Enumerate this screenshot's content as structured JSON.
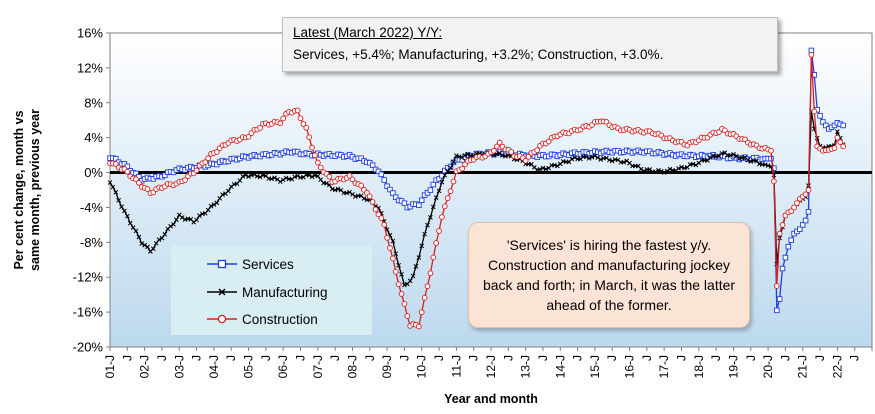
{
  "chart_data": {
    "type": "line",
    "title": "",
    "xlabel": "Year and month",
    "ylabel": "Per cent change, month vs\nsame month, previous year",
    "ylim": [
      -20,
      16
    ],
    "y_ticks": [
      "16%",
      "12%",
      "8%",
      "4%",
      "0%",
      "-4%",
      "-8%",
      "-12%",
      "-16%",
      "-20%"
    ],
    "x_tick_labels": [
      "01-J",
      "J",
      "02-J",
      "J",
      "03-J",
      "J",
      "04-J",
      "J",
      "05-J",
      "J",
      "06-J",
      "J",
      "07-J",
      "J",
      "08-J",
      "J",
      "09-J",
      "J",
      "10-J",
      "J",
      "11-J",
      "J",
      "12-J",
      "J",
      "13-J",
      "J",
      "14-J",
      "J",
      "15-J",
      "J",
      "16-J",
      "J",
      "17-J",
      "J",
      "18-J",
      "J",
      "19-J",
      "J",
      "20-J",
      "J",
      "21-J",
      "J",
      "22-J",
      "J"
    ],
    "x_start": "2001-01",
    "x_end": "2022-03",
    "legend_position": "bottom-left",
    "grid": false,
    "series": [
      {
        "name": "Services",
        "color": "#1f3fdc",
        "marker": "square",
        "points": [
          [
            "2001-01",
            1.8
          ],
          [
            "2001-06",
            0.9
          ],
          [
            "2001-12",
            -0.8
          ],
          [
            "2002-06",
            -0.5
          ],
          [
            "2002-12",
            0.3
          ],
          [
            "2003-06",
            0.6
          ],
          [
            "2003-12",
            0.9
          ],
          [
            "2004-06",
            1.4
          ],
          [
            "2004-12",
            1.8
          ],
          [
            "2005-06",
            2.0
          ],
          [
            "2005-12",
            2.2
          ],
          [
            "2006-04",
            2.4
          ],
          [
            "2006-09",
            2.1
          ],
          [
            "2007-06",
            2.0
          ],
          [
            "2007-12",
            1.9
          ],
          [
            "2008-06",
            1.3
          ],
          [
            "2008-10",
            0.2
          ],
          [
            "2009-03",
            -2.5
          ],
          [
            "2009-08",
            -3.9
          ],
          [
            "2009-12",
            -3.6
          ],
          [
            "2010-06",
            -1.0
          ],
          [
            "2010-12",
            1.2
          ],
          [
            "2011-06",
            2.0
          ],
          [
            "2011-12",
            2.2
          ],
          [
            "2012-06",
            2.2
          ],
          [
            "2012-12",
            2.0
          ],
          [
            "2013-06",
            1.9
          ],
          [
            "2013-12",
            2.0
          ],
          [
            "2014-06",
            2.2
          ],
          [
            "2014-12",
            2.3
          ],
          [
            "2015-06",
            2.4
          ],
          [
            "2015-12",
            2.4
          ],
          [
            "2016-06",
            2.4
          ],
          [
            "2016-12",
            2.2
          ],
          [
            "2017-06",
            2.0
          ],
          [
            "2017-12",
            1.9
          ],
          [
            "2018-06",
            1.9
          ],
          [
            "2018-12",
            1.7
          ],
          [
            "2019-06",
            1.6
          ],
          [
            "2019-12",
            1.6
          ],
          [
            "2020-02",
            1.6
          ],
          [
            "2020-03",
            0.5
          ],
          [
            "2020-04",
            -15.8
          ],
          [
            "2020-05",
            -14.5
          ],
          [
            "2020-06",
            -11.0
          ],
          [
            "2020-08",
            -8.5
          ],
          [
            "2020-10",
            -7.0
          ],
          [
            "2020-12",
            -6.5
          ],
          [
            "2021-02",
            -5.5
          ],
          [
            "2021-03",
            -4.5
          ],
          [
            "2021-04",
            14.0
          ],
          [
            "2021-05",
            11.2
          ],
          [
            "2021-06",
            7.2
          ],
          [
            "2021-08",
            5.8
          ],
          [
            "2021-10",
            5.0
          ],
          [
            "2021-12",
            5.4
          ],
          [
            "2022-01",
            5.7
          ],
          [
            "2022-03",
            5.4
          ]
        ]
      },
      {
        "name": "Manufacturing",
        "color": "#000000",
        "marker": "x",
        "points": [
          [
            "2001-01",
            -1.0
          ],
          [
            "2001-06",
            -4.5
          ],
          [
            "2001-12",
            -8.0
          ],
          [
            "2002-03",
            -9.0
          ],
          [
            "2002-08",
            -7.0
          ],
          [
            "2003-01",
            -5.0
          ],
          [
            "2003-06",
            -5.6
          ],
          [
            "2003-12",
            -4.0
          ],
          [
            "2004-06",
            -2.0
          ],
          [
            "2004-12",
            -0.3
          ],
          [
            "2005-06",
            -0.4
          ],
          [
            "2005-12",
            -0.9
          ],
          [
            "2006-06",
            -0.5
          ],
          [
            "2006-12",
            -0.3
          ],
          [
            "2007-06",
            -1.8
          ],
          [
            "2007-12",
            -2.4
          ],
          [
            "2008-06",
            -3.0
          ],
          [
            "2008-10",
            -4.0
          ],
          [
            "2009-03",
            -8.0
          ],
          [
            "2009-07",
            -13.0
          ],
          [
            "2009-10",
            -12.0
          ],
          [
            "2010-03",
            -6.0
          ],
          [
            "2010-08",
            -1.0
          ],
          [
            "2011-01",
            1.8
          ],
          [
            "2011-06",
            2.0
          ],
          [
            "2011-12",
            2.2
          ],
          [
            "2012-06",
            2.0
          ],
          [
            "2012-12",
            1.3
          ],
          [
            "2013-06",
            0.3
          ],
          [
            "2013-12",
            0.9
          ],
          [
            "2014-06",
            1.6
          ],
          [
            "2014-12",
            1.8
          ],
          [
            "2015-06",
            1.5
          ],
          [
            "2015-12",
            1.2
          ],
          [
            "2016-06",
            0.3
          ],
          [
            "2016-12",
            0.1
          ],
          [
            "2017-06",
            0.4
          ],
          [
            "2017-12",
            1.0
          ],
          [
            "2018-06",
            1.8
          ],
          [
            "2018-10",
            2.2
          ],
          [
            "2019-06",
            1.5
          ],
          [
            "2019-12",
            0.9
          ],
          [
            "2020-02",
            0.7
          ],
          [
            "2020-03",
            -0.3
          ],
          [
            "2020-04",
            -10.5
          ],
          [
            "2020-05",
            -7.5
          ],
          [
            "2020-07",
            -5.0
          ],
          [
            "2020-10",
            -4.0
          ],
          [
            "2020-12",
            -3.2
          ],
          [
            "2021-02",
            -2.8
          ],
          [
            "2021-03",
            -1.5
          ],
          [
            "2021-04",
            7.0
          ],
          [
            "2021-05",
            5.0
          ],
          [
            "2021-07",
            2.9
          ],
          [
            "2021-10",
            3.0
          ],
          [
            "2021-12",
            3.1
          ],
          [
            "2022-01",
            4.7
          ],
          [
            "2022-03",
            3.2
          ]
        ]
      },
      {
        "name": "Construction",
        "color": "#d42020",
        "marker": "circle",
        "points": [
          [
            "2001-01",
            1.2
          ],
          [
            "2001-06",
            0.3
          ],
          [
            "2001-12",
            -1.5
          ],
          [
            "2002-03",
            -2.3
          ],
          [
            "2002-08",
            -1.5
          ],
          [
            "2003-01",
            -1.2
          ],
          [
            "2003-06",
            0.0
          ],
          [
            "2003-12",
            2.0
          ],
          [
            "2004-06",
            3.5
          ],
          [
            "2004-12",
            4.0
          ],
          [
            "2005-06",
            5.5
          ],
          [
            "2005-12",
            5.8
          ],
          [
            "2006-03",
            7.0
          ],
          [
            "2006-06",
            7.0
          ],
          [
            "2006-09",
            5.0
          ],
          [
            "2007-01",
            1.0
          ],
          [
            "2007-06",
            -1.0
          ],
          [
            "2007-12",
            -0.5
          ],
          [
            "2008-06",
            -2.2
          ],
          [
            "2008-12",
            -6.0
          ],
          [
            "2009-06",
            -14.0
          ],
          [
            "2009-09",
            -17.5
          ],
          [
            "2009-12",
            -17.5
          ],
          [
            "2010-03",
            -13.0
          ],
          [
            "2010-08",
            -5.0
          ],
          [
            "2011-01",
            0.0
          ],
          [
            "2011-06",
            1.5
          ],
          [
            "2011-12",
            2.0
          ],
          [
            "2012-04",
            3.3
          ],
          [
            "2012-09",
            2.0
          ],
          [
            "2013-01",
            1.5
          ],
          [
            "2013-06",
            3.0
          ],
          [
            "2013-12",
            4.3
          ],
          [
            "2014-06",
            4.8
          ],
          [
            "2014-12",
            5.5
          ],
          [
            "2015-03",
            6.0
          ],
          [
            "2015-09",
            5.0
          ],
          [
            "2016-03",
            4.8
          ],
          [
            "2016-09",
            4.6
          ],
          [
            "2017-03",
            3.8
          ],
          [
            "2017-09",
            3.2
          ],
          [
            "2018-03",
            4.0
          ],
          [
            "2018-09",
            4.9
          ],
          [
            "2019-03",
            4.0
          ],
          [
            "2019-09",
            3.0
          ],
          [
            "2020-02",
            2.5
          ],
          [
            "2020-03",
            -1.0
          ],
          [
            "2020-04",
            -13.0
          ],
          [
            "2020-05",
            -7.0
          ],
          [
            "2020-07",
            -5.0
          ],
          [
            "2020-10",
            -4.0
          ],
          [
            "2020-12",
            -3.0
          ],
          [
            "2021-02",
            -2.5
          ],
          [
            "2021-03",
            -2.0
          ],
          [
            "2021-04",
            13.5
          ],
          [
            "2021-05",
            7.0
          ],
          [
            "2021-06",
            3.0
          ],
          [
            "2021-08",
            2.5
          ],
          [
            "2021-10",
            2.6
          ],
          [
            "2021-12",
            2.8
          ],
          [
            "2022-01",
            4.0
          ],
          [
            "2022-03",
            3.0
          ]
        ]
      }
    ]
  },
  "note": {
    "title": "Latest (March 2022) Y/Y:",
    "body": "Services, +5.4%; Manufacturing, +3.2%; Construction, +3.0%."
  },
  "callout": {
    "text": "'Services' is hiring the fastest y/y. Construction and manufacturing jockey back and forth; in March, it was the latter ahead of the former."
  },
  "legend": {
    "services": "Services",
    "manufacturing": "Manufacturing",
    "construction": "Construction"
  },
  "axis_titles": {
    "y": "Per cent change, month vs\nsame month, previous year",
    "x": "Year and month"
  }
}
